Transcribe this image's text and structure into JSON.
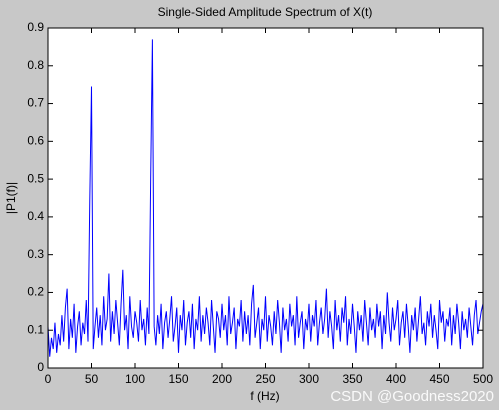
{
  "chart_data": {
    "type": "line",
    "title": "Single-Sided Amplitude Spectrum of X(t)",
    "xlabel": "f (Hz)",
    "ylabel": "|P1(f)|",
    "watermark": "CSDN @Goodness2020",
    "color": "#0000ff",
    "xlim": [
      0,
      500
    ],
    "ylim": [
      0,
      0.9
    ],
    "xticks": [
      0,
      50,
      100,
      150,
      200,
      250,
      300,
      350,
      400,
      450,
      500
    ],
    "yticks": [
      0,
      0.1,
      0.2,
      0.3,
      0.4,
      0.5,
      0.6,
      0.7,
      0.8,
      0.9
    ],
    "x": [
      0,
      2,
      4,
      6,
      8,
      10,
      12,
      14,
      16,
      18,
      20,
      22,
      24,
      26,
      28,
      30,
      32,
      34,
      36,
      38,
      40,
      42,
      44,
      46,
      48,
      50,
      52,
      54,
      56,
      58,
      60,
      62,
      64,
      66,
      68,
      70,
      72,
      74,
      76,
      78,
      80,
      82,
      84,
      86,
      88,
      90,
      92,
      94,
      96,
      98,
      100,
      102,
      104,
      106,
      108,
      110,
      112,
      114,
      116,
      118,
      120,
      122,
      124,
      126,
      128,
      130,
      132,
      134,
      136,
      138,
      140,
      142,
      144,
      146,
      148,
      150,
      152,
      154,
      156,
      158,
      160,
      162,
      164,
      166,
      168,
      170,
      172,
      174,
      176,
      178,
      180,
      182,
      184,
      186,
      188,
      190,
      192,
      194,
      196,
      198,
      200,
      202,
      204,
      206,
      208,
      210,
      212,
      214,
      216,
      218,
      220,
      222,
      224,
      226,
      228,
      230,
      232,
      234,
      236,
      238,
      240,
      242,
      244,
      246,
      248,
      250,
      252,
      254,
      256,
      258,
      260,
      262,
      264,
      266,
      268,
      270,
      272,
      274,
      276,
      278,
      280,
      282,
      284,
      286,
      288,
      290,
      292,
      294,
      296,
      298,
      300,
      302,
      304,
      306,
      308,
      310,
      312,
      314,
      316,
      318,
      320,
      322,
      324,
      326,
      328,
      330,
      332,
      334,
      336,
      338,
      340,
      342,
      344,
      346,
      348,
      350,
      352,
      354,
      356,
      358,
      360,
      362,
      364,
      366,
      368,
      370,
      372,
      374,
      376,
      378,
      380,
      382,
      384,
      386,
      388,
      390,
      392,
      394,
      396,
      398,
      400,
      402,
      404,
      406,
      408,
      410,
      412,
      414,
      416,
      418,
      420,
      422,
      424,
      426,
      428,
      430,
      432,
      434,
      436,
      438,
      440,
      442,
      444,
      446,
      448,
      450,
      452,
      454,
      456,
      458,
      460,
      462,
      464,
      466,
      468,
      470,
      472,
      474,
      476,
      478,
      480,
      482,
      484,
      486,
      488,
      490,
      492,
      494,
      496,
      498,
      500
    ],
    "values": [
      0.11,
      0.03,
      0.08,
      0.05,
      0.12,
      0.04,
      0.09,
      0.06,
      0.14,
      0.07,
      0.16,
      0.21,
      0.05,
      0.13,
      0.08,
      0.17,
      0.04,
      0.11,
      0.15,
      0.06,
      0.12,
      0.09,
      0.18,
      0.07,
      0.44,
      0.745,
      0.05,
      0.11,
      0.16,
      0.08,
      0.14,
      0.06,
      0.19,
      0.1,
      0.13,
      0.25,
      0.07,
      0.15,
      0.09,
      0.18,
      0.12,
      0.06,
      0.17,
      0.26,
      0.1,
      0.14,
      0.05,
      0.19,
      0.11,
      0.08,
      0.15,
      0.12,
      0.07,
      0.18,
      0.1,
      0.13,
      0.06,
      0.16,
      0.09,
      0.5,
      0.87,
      0.11,
      0.06,
      0.14,
      0.09,
      0.17,
      0.05,
      0.12,
      0.15,
      0.08,
      0.13,
      0.19,
      0.07,
      0.11,
      0.16,
      0.04,
      0.14,
      0.1,
      0.18,
      0.06,
      0.12,
      0.15,
      0.08,
      0.17,
      0.05,
      0.13,
      0.1,
      0.19,
      0.07,
      0.14,
      0.09,
      0.16,
      0.12,
      0.06,
      0.18,
      0.11,
      0.04,
      0.15,
      0.13,
      0.08,
      0.17,
      0.1,
      0.14,
      0.06,
      0.19,
      0.09,
      0.12,
      0.16,
      0.05,
      0.13,
      0.11,
      0.18,
      0.07,
      0.15,
      0.09,
      0.14,
      0.06,
      0.17,
      0.22,
      0.08,
      0.12,
      0.16,
      0.05,
      0.13,
      0.1,
      0.19,
      0.07,
      0.14,
      0.11,
      0.06,
      0.15,
      0.09,
      0.18,
      0.12,
      0.04,
      0.16,
      0.1,
      0.13,
      0.07,
      0.17,
      0.11,
      0.14,
      0.06,
      0.19,
      0.08,
      0.12,
      0.15,
      0.05,
      0.13,
      0.1,
      0.17,
      0.07,
      0.14,
      0.11,
      0.18,
      0.06,
      0.12,
      0.16,
      0.09,
      0.13,
      0.21,
      0.08,
      0.15,
      0.11,
      0.05,
      0.18,
      0.1,
      0.14,
      0.07,
      0.16,
      0.12,
      0.19,
      0.06,
      0.13,
      0.09,
      0.17,
      0.11,
      0.04,
      0.15,
      0.1,
      0.14,
      0.07,
      0.18,
      0.12,
      0.06,
      0.16,
      0.1,
      0.13,
      0.08,
      0.17,
      0.11,
      0.15,
      0.05,
      0.14,
      0.09,
      0.2,
      0.12,
      0.07,
      0.16,
      0.1,
      0.13,
      0.18,
      0.06,
      0.12,
      0.15,
      0.08,
      0.17,
      0.11,
      0.04,
      0.14,
      0.1,
      0.16,
      0.07,
      0.13,
      0.19,
      0.09,
      0.12,
      0.06,
      0.15,
      0.11,
      0.17,
      0.08,
      0.14,
      0.1,
      0.05,
      0.18,
      0.12,
      0.15,
      0.07,
      0.13,
      0.11,
      0.16,
      0.06,
      0.14,
      0.09,
      0.17,
      0.12,
      0.05,
      0.15,
      0.1,
      0.13,
      0.08,
      0.16,
      0.11,
      0.06,
      0.14,
      0.18,
      0.09,
      0.12,
      0.15,
      0.17
    ]
  }
}
